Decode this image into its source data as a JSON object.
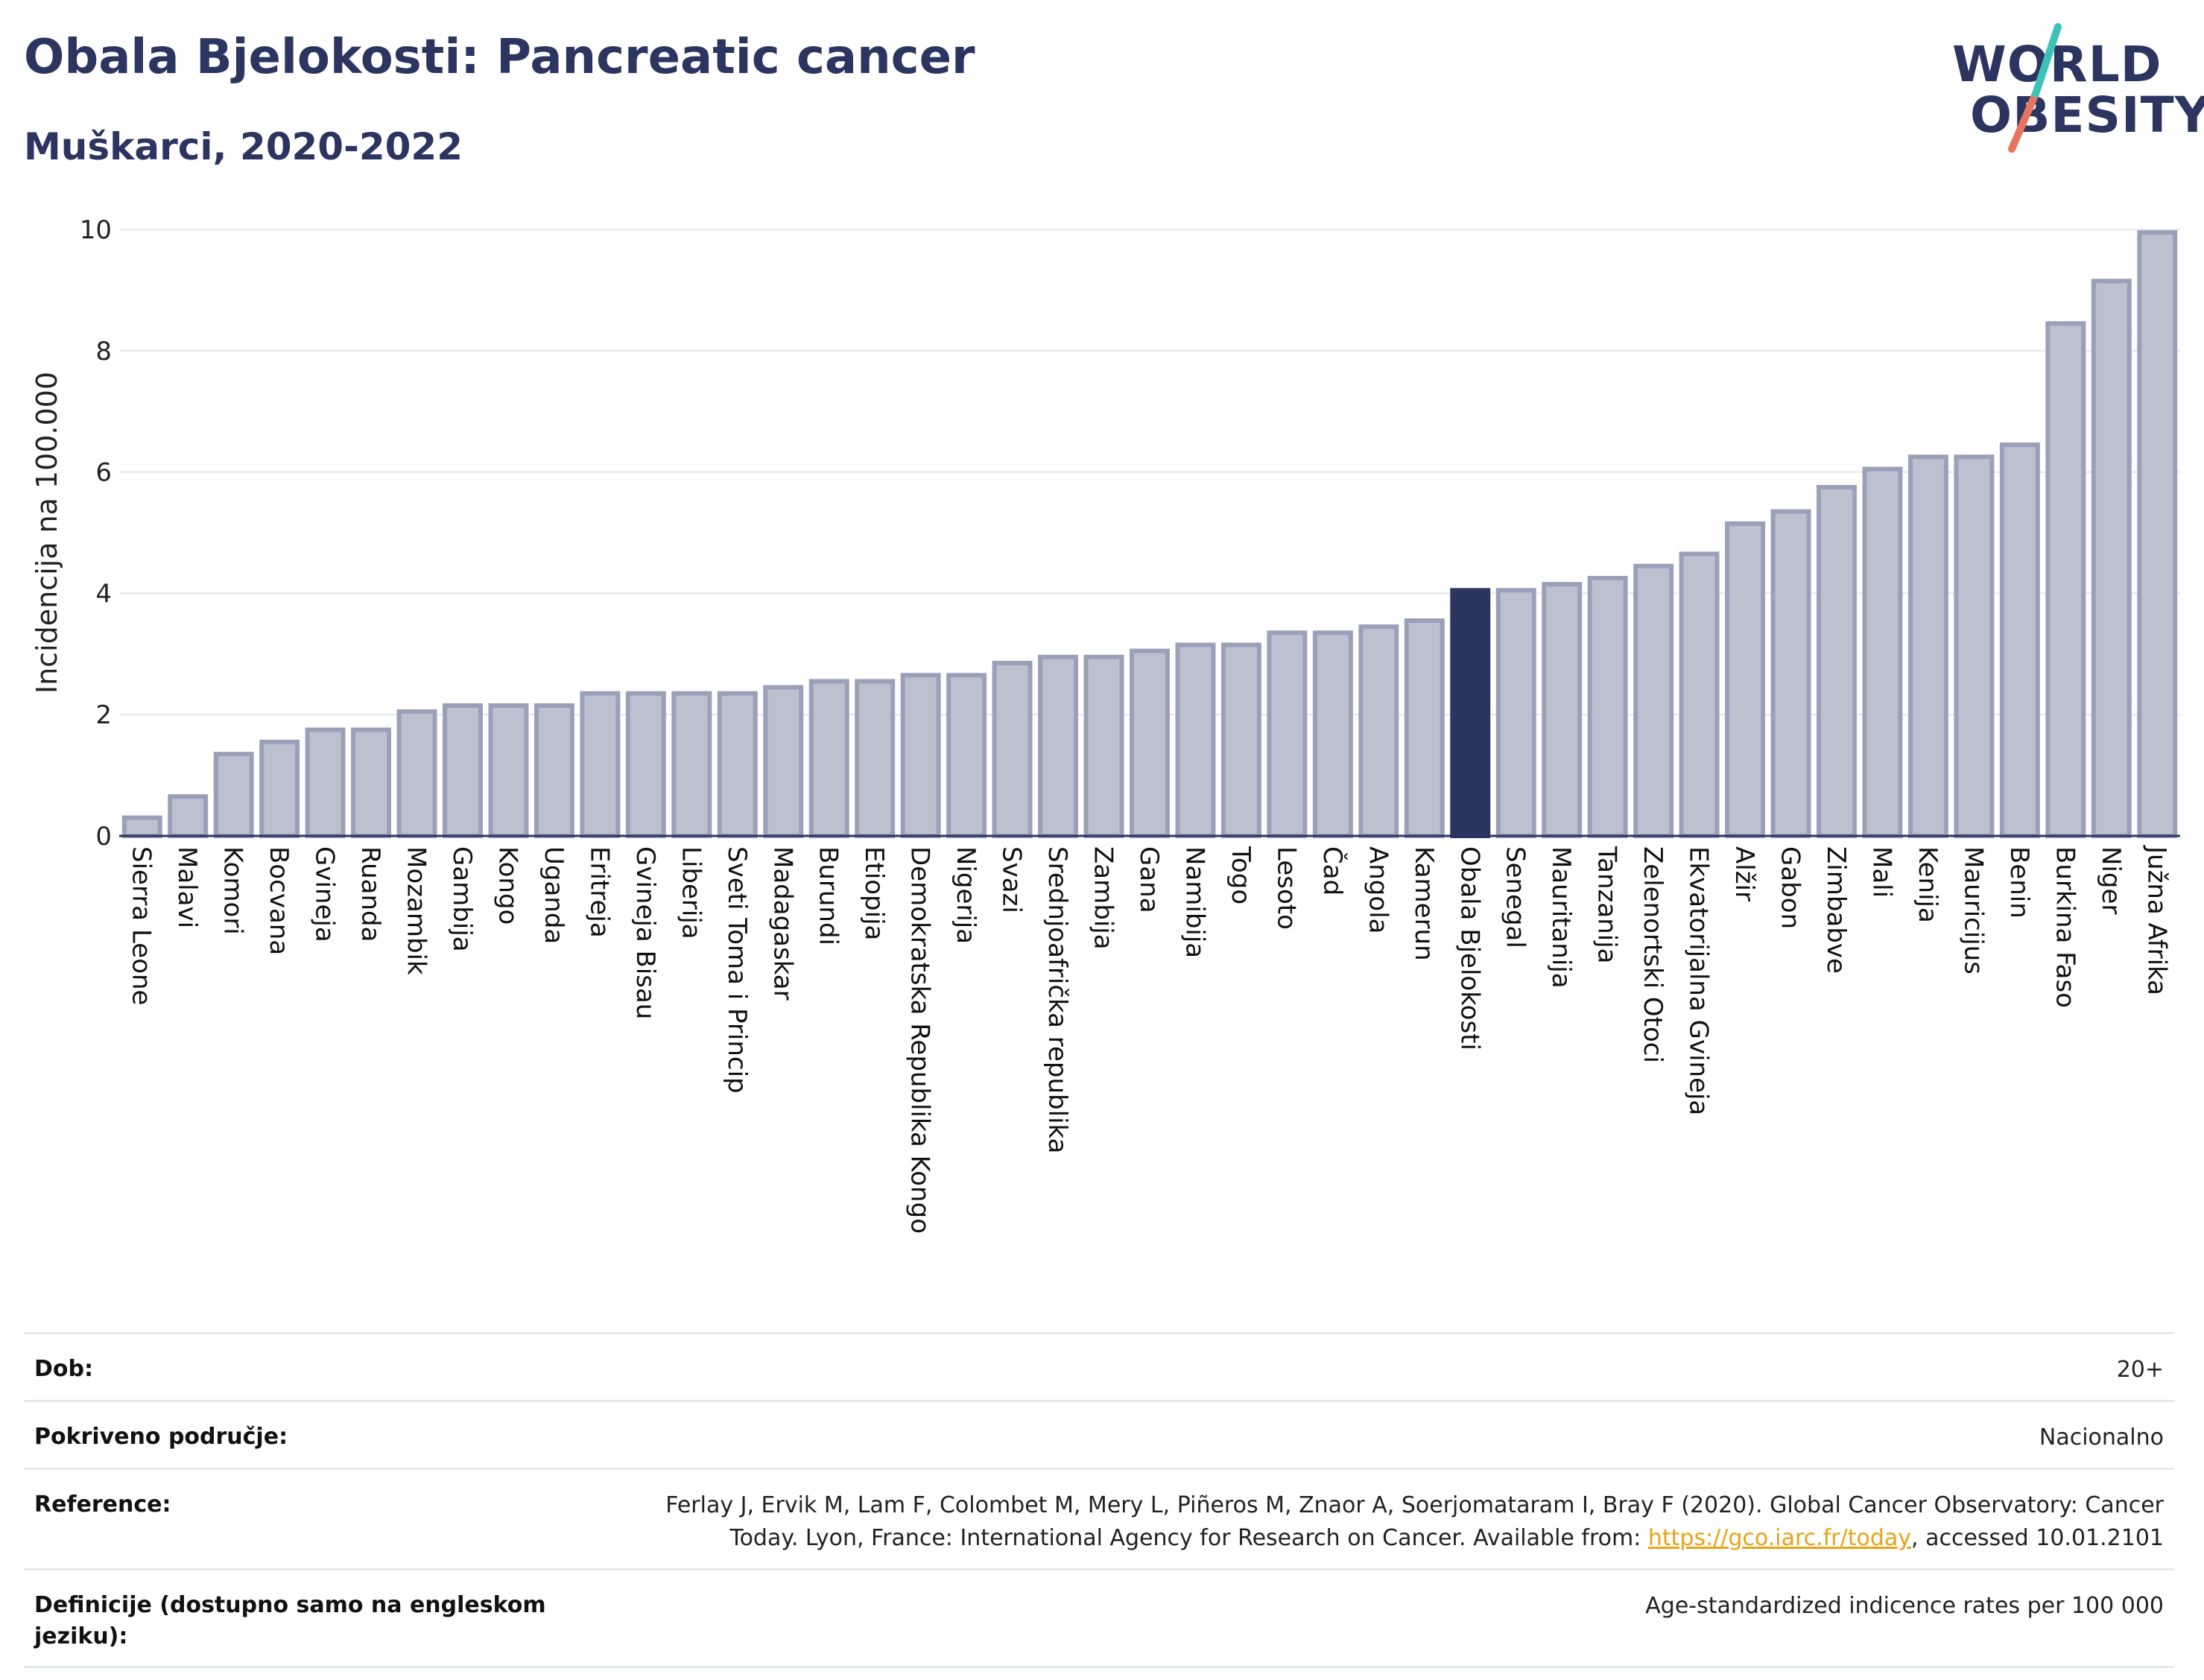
{
  "title": "Obala Bjelokosti: Pancreatic cancer",
  "subtitle": "Muškarci, 2020-2022",
  "logo": {
    "line1": "WORLD",
    "line2": "OBESITY"
  },
  "colors": {
    "title": "#2b3560",
    "bar_fill": "#bcc1d0",
    "bar_stroke": "#9aa0b8",
    "highlight": "#2b3560",
    "link": "#e8a317",
    "logo_teal": "#3cc3b9",
    "logo_coral": "#e8735f"
  },
  "chart_data": {
    "type": "bar",
    "ylabel": "Incidencija na 100.000",
    "ylim": [
      0,
      10
    ],
    "yticks": [
      0,
      2,
      4,
      6,
      8,
      10
    ],
    "grid": true,
    "highlight": "Obala Bjelokosti",
    "categories": [
      "Sierra Leone",
      "Malavi",
      "Komori",
      "Bocvana",
      "Gvineja",
      "Ruanda",
      "Mozambik",
      "Gambija",
      "Kongo",
      "Uganda",
      "Eritreja",
      "Gvineja Bisau",
      "Liberija",
      "Sveti Toma i Princip",
      "Madagaskar",
      "Burundi",
      "Etiopija",
      "Demokratska Republika Kongo",
      "Nigerija",
      "Svazi",
      "Srednjoafrička republika",
      "Zambija",
      "Gana",
      "Namibija",
      "Togo",
      "Lesoto",
      "Čad",
      "Angola",
      "Kamerun",
      "Obala Bjelokosti",
      "Senegal",
      "Mauritanija",
      "Tanzanija",
      "Zelenortski Otoci",
      "Ekvatorijalna Gvineja",
      "Alžir",
      "Gabon",
      "Zimbabve",
      "Mali",
      "Kenija",
      "Mauricijus",
      "Benin",
      "Burkina Faso",
      "Niger",
      "Južna Afrika"
    ],
    "values": [
      0.3,
      0.65,
      1.35,
      1.55,
      1.75,
      1.75,
      2.05,
      2.15,
      2.15,
      2.15,
      2.35,
      2.35,
      2.35,
      2.35,
      2.45,
      2.55,
      2.55,
      2.65,
      2.65,
      2.85,
      2.95,
      2.95,
      3.05,
      3.15,
      3.15,
      3.35,
      3.35,
      3.45,
      3.55,
      4.05,
      4.05,
      4.15,
      4.25,
      4.45,
      4.65,
      5.15,
      5.35,
      5.75,
      6.05,
      6.25,
      6.25,
      6.45,
      8.45,
      9.15,
      9.95
    ]
  },
  "info": {
    "age_label": "Dob:",
    "age_value": "20+",
    "coverage_label": "Pokriveno područje:",
    "coverage_value": "Nacionalno",
    "reference_label": "Reference:",
    "reference_text_1": "Ferlay J, Ervik M, Lam F, Colombet M, Mery L, Piñeros M, Znaor A, Soerjomataram I, Bray F (2020). Global Cancer Observatory: Cancer",
    "reference_text_2": "Today. Lyon, France: International Agency for Research on Cancer. Available from: ",
    "reference_link": "https://gco.iarc.fr/today",
    "reference_text_3": ", accessed 10.01.2101",
    "definition_label": "Definicije (dostupno samo na engleskom jeziku):",
    "definition_value": "Age-standardized indicence rates per 100 000"
  }
}
